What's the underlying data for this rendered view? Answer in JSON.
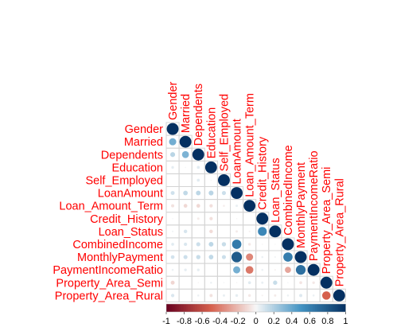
{
  "chart_data": {
    "type": "heatmap",
    "variant": "correlation-circle-upper",
    "variables": [
      "Gender",
      "Married",
      "Dependents",
      "Education",
      "Self_Employed",
      "LoanAmount",
      "Loan_Amount_Term",
      "Credit_History",
      "Loan_Status",
      "CombinedIncome",
      "MonthlyPayment",
      "PaymentIncomeRatio",
      "Property_Area_Semi",
      "Property_Area_Rural"
    ],
    "matrix": [
      [
        1,
        0.37,
        0.17,
        0.05,
        0.0,
        0.11,
        -0.07,
        0.01,
        0.02,
        0.06,
        0.1,
        0.03,
        -0.11,
        0.08
      ],
      [
        0.37,
        1,
        0.34,
        0.01,
        0.0,
        0.15,
        -0.1,
        0.0,
        0.09,
        0.08,
        0.12,
        0.05,
        0.0,
        0.0
      ],
      [
        0.17,
        0.34,
        1,
        0.06,
        0.06,
        0.16,
        -0.1,
        -0.04,
        0.0,
        0.12,
        0.13,
        0.05,
        -0.01,
        0.03
      ],
      [
        0.05,
        0.01,
        0.06,
        1,
        -0.01,
        0.17,
        -0.08,
        -0.08,
        -0.09,
        0.16,
        0.15,
        0.0,
        0.03,
        -0.07
      ],
      [
        0.0,
        0.0,
        0.06,
        -0.01,
        1,
        0.12,
        -0.03,
        0.0,
        0.0,
        0.13,
        0.12,
        0.0,
        0.01,
        0.04
      ],
      [
        0.11,
        0.15,
        0.16,
        0.17,
        0.12,
        1,
        0.04,
        -0.01,
        -0.04,
        0.62,
        0.79,
        0.36,
        -0.01,
        0.05
      ],
      [
        -0.07,
        -0.1,
        -0.1,
        -0.08,
        -0.03,
        0.04,
        1,
        0.0,
        -0.02,
        -0.05,
        -0.37,
        -0.42,
        0.06,
        -0.05
      ],
      [
        0.01,
        0.0,
        -0.04,
        -0.08,
        0.0,
        -0.01,
        0.0,
        1,
        0.56,
        -0.01,
        0.03,
        0.03,
        0.04,
        -0.02
      ],
      [
        0.02,
        0.09,
        0.0,
        -0.09,
        0.0,
        -0.04,
        -0.02,
        0.56,
        1,
        -0.01,
        0.02,
        -0.02,
        0.13,
        -0.04
      ],
      [
        0.06,
        0.08,
        0.12,
        0.16,
        0.13,
        0.62,
        -0.05,
        -0.01,
        -0.01,
        1,
        0.61,
        -0.27,
        0.01,
        0.03
      ],
      [
        0.1,
        0.12,
        0.13,
        0.15,
        0.12,
        0.79,
        -0.37,
        0.03,
        0.02,
        0.61,
        1,
        0.68,
        -0.06,
        0.07
      ],
      [
        0.03,
        0.05,
        0.05,
        0.0,
        0.0,
        0.36,
        -0.42,
        0.03,
        -0.02,
        -0.27,
        0.68,
        1,
        -0.05,
        0.03
      ],
      [
        -0.11,
        0.0,
        -0.01,
        0.03,
        0.01,
        -0.01,
        0.06,
        0.04,
        0.13,
        0.01,
        -0.06,
        -0.05,
        1,
        -0.5
      ],
      [
        0.08,
        0.0,
        0.03,
        -0.07,
        0.04,
        0.05,
        -0.05,
        -0.02,
        -0.04,
        0.03,
        0.07,
        0.03,
        -0.5,
        1
      ]
    ],
    "colorbar": {
      "range": [
        -1,
        1
      ],
      "ticks": [
        "-1",
        "-0.8",
        "-0.6",
        "-0.4",
        "-0.2",
        "0",
        "0.2",
        "0.4",
        "0.6",
        "0.8",
        "1"
      ]
    },
    "colors": {
      "label": "#ff0000",
      "strong_negative": "#67001f",
      "negative": "#d6604d",
      "neutral": "#f7f7f7",
      "positive": "#4393c3",
      "strong_positive": "#053061",
      "grid": "#d4d4d4"
    },
    "legend_position": "bottom"
  }
}
